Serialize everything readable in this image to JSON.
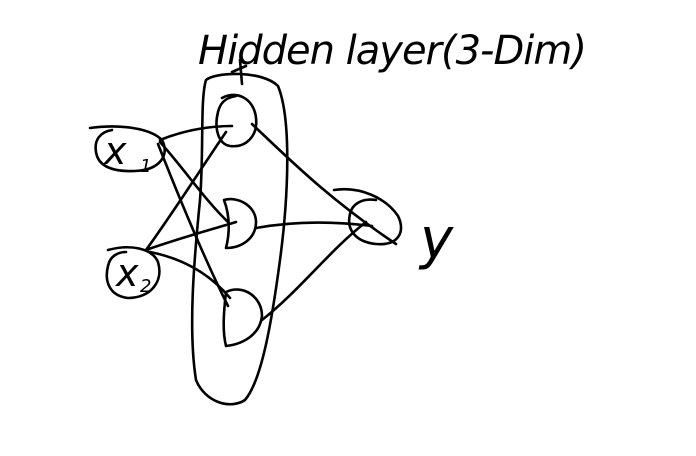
{
  "diagram": {
    "title": "Hidden layer(3-Dim)",
    "inputs": [
      {
        "label": "x",
        "subscript": "1"
      },
      {
        "label": "x",
        "subscript": "2"
      }
    ],
    "hidden_nodes": 3,
    "output": {
      "label": "y"
    },
    "ink_color": "#000000",
    "background_color": "#ffffff"
  }
}
